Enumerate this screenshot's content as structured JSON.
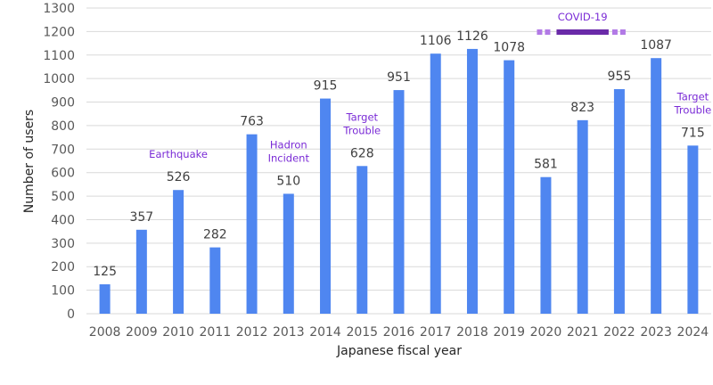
{
  "chart_data": {
    "type": "bar",
    "xlabel": "Japanese fiscal year",
    "ylabel": "Number of users",
    "ylim": [
      0,
      1300
    ],
    "yticks": [
      0,
      100,
      200,
      300,
      400,
      500,
      600,
      700,
      800,
      900,
      1000,
      1100,
      1200,
      1300
    ],
    "grid": true,
    "categories": [
      "2008",
      "2009",
      "2010",
      "2011",
      "2012",
      "2013",
      "2014",
      "2015",
      "2016",
      "2017",
      "2018",
      "2019",
      "2020",
      "2021",
      "2022",
      "2023",
      "2024"
    ],
    "values": [
      125,
      357,
      526,
      282,
      763,
      510,
      915,
      628,
      951,
      1106,
      1126,
      1078,
      581,
      823,
      955,
      1087,
      715
    ],
    "annotations": [
      {
        "category": "2010",
        "lines": [
          "Earthquake"
        ]
      },
      {
        "category": "2013",
        "lines": [
          "Hadron",
          "Incident"
        ]
      },
      {
        "category": "2015",
        "lines": [
          "Target",
          "Trouble"
        ]
      },
      {
        "category": "2024",
        "lines": [
          "Target",
          "Trouble"
        ]
      }
    ],
    "period_annotation": {
      "label": "COVID-19",
      "from": "2020",
      "to": "2022"
    }
  },
  "colors": {
    "bar": "#4f86f0",
    "annotation_text": "#7a2bd6",
    "covid_solid": "#6a2aa8",
    "covid_dashed": "#b27ae6",
    "grid": "#d9d9d9"
  }
}
